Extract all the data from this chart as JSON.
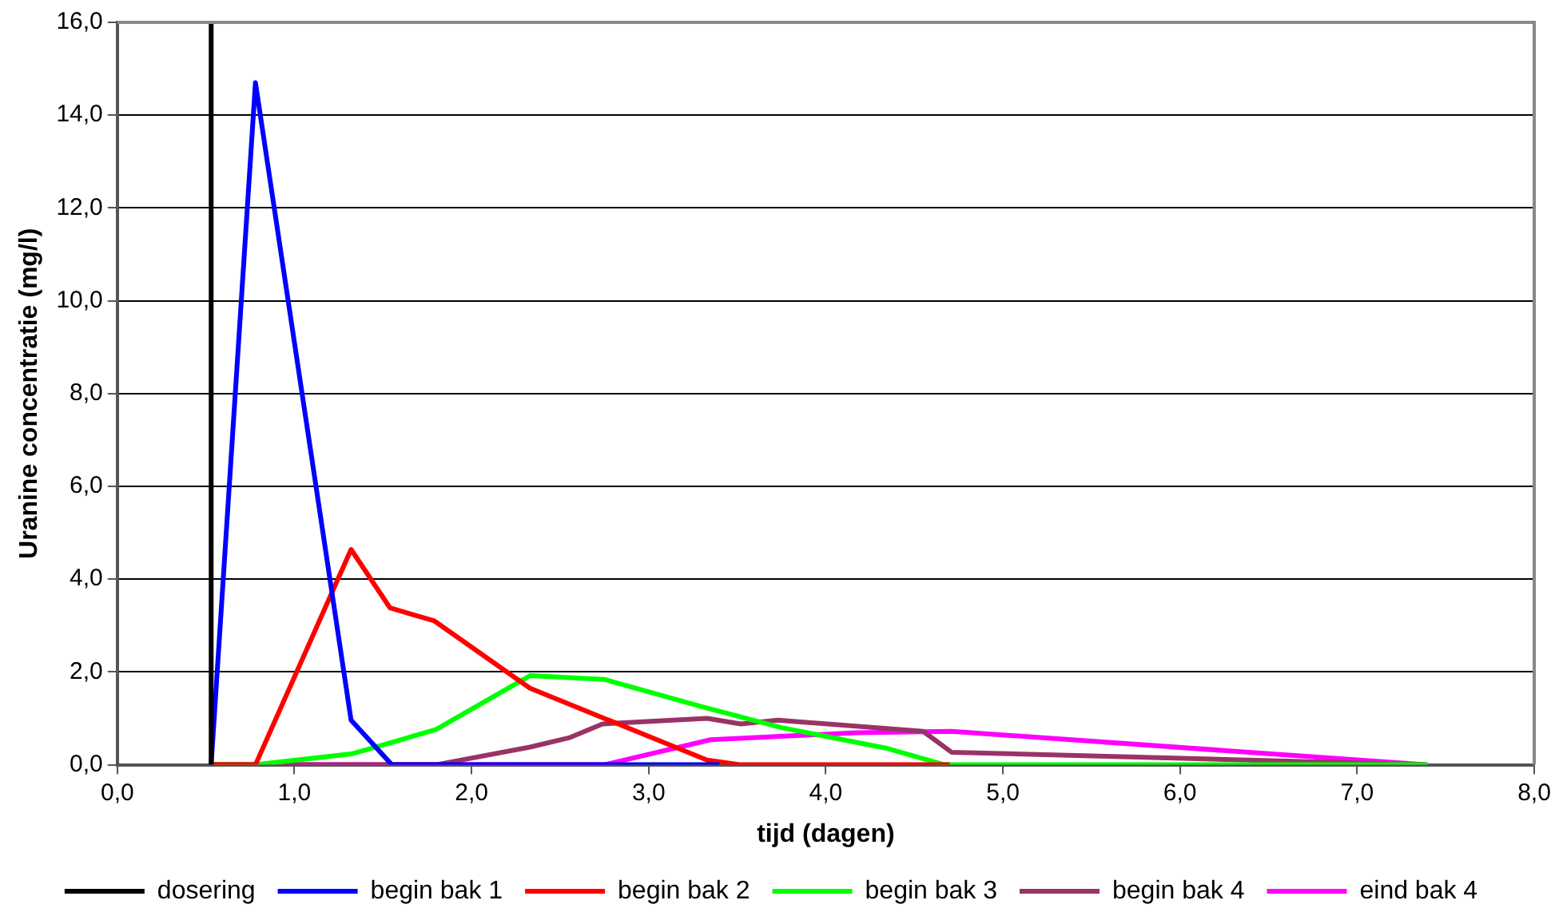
{
  "chart_data": {
    "type": "line",
    "xlabel": "tijd (dagen)",
    "ylabel": "Uranine concentratie (mg/l)",
    "xlim": [
      0,
      8
    ],
    "xticks": [
      {
        "value": 0,
        "label": "0,0"
      },
      {
        "value": 1,
        "label": "1,0"
      },
      {
        "value": 2,
        "label": "2,0"
      },
      {
        "value": 3,
        "label": "3,0"
      },
      {
        "value": 4,
        "label": "4,0"
      },
      {
        "value": 5,
        "label": "5,0"
      },
      {
        "value": 6,
        "label": "6,0"
      },
      {
        "value": 7,
        "label": "7,0"
      },
      {
        "value": 8,
        "label": "8,0"
      }
    ],
    "ylim": [
      0,
      16
    ],
    "yticks": [
      {
        "value": 0,
        "label": "0,0"
      },
      {
        "value": 2,
        "label": "2,0"
      },
      {
        "value": 4,
        "label": "4,0"
      },
      {
        "value": 6,
        "label": "6,0"
      },
      {
        "value": 8,
        "label": "8,0"
      },
      {
        "value": 10,
        "label": "10,0"
      },
      {
        "value": 12,
        "label": "12,0"
      },
      {
        "value": 14,
        "label": "14,0"
      },
      {
        "value": 16,
        "label": "16,0"
      }
    ],
    "grid": "y",
    "legend": "bottom",
    "marker": "none",
    "line_style": "solid",
    "series": [
      {
        "name": "dosering",
        "color": "#000000",
        "x": [
          0.53,
          0.53
        ],
        "values": [
          0,
          16
        ]
      },
      {
        "name": "begin bak 1",
        "color": "#0000ff",
        "x": [
          0.53,
          0.78,
          1.32,
          1.55,
          3.4
        ],
        "values": [
          0,
          14.7,
          0.96,
          0,
          0
        ]
      },
      {
        "name": "begin bak 2",
        "color": "#ff0000",
        "x": [
          0.53,
          0.78,
          1.32,
          1.54,
          1.79,
          2.33,
          3.33,
          3.52,
          4.7
        ],
        "values": [
          0,
          0,
          4.64,
          3.38,
          3.1,
          1.65,
          0.1,
          0,
          0
        ]
      },
      {
        "name": "begin bak 3",
        "color": "#00ff00",
        "x": [
          0.53,
          0.78,
          1.33,
          1.8,
          2.33,
          2.75,
          3.3,
          3.75,
          4.35,
          4.67,
          7.4
        ],
        "values": [
          0,
          0,
          0.24,
          0.76,
          1.92,
          1.84,
          1.25,
          0.8,
          0.35,
          0,
          0
        ]
      },
      {
        "name": "begin bak 4",
        "color": "#993366",
        "x": [
          0.53,
          1.8,
          2.33,
          2.55,
          2.74,
          3.33,
          3.52,
          3.73,
          4.55,
          4.71,
          7.39
        ],
        "values": [
          0,
          0,
          0.38,
          0.58,
          0.88,
          1.0,
          0.88,
          0.96,
          0.72,
          0.27,
          0
        ]
      },
      {
        "name": "eind bak 4",
        "color": "#ff00ff",
        "x": [
          0.53,
          2.75,
          3.35,
          4.17,
          4.71,
          7.39
        ],
        "values": [
          0,
          0,
          0.54,
          0.69,
          0.72,
          0
        ]
      }
    ]
  }
}
